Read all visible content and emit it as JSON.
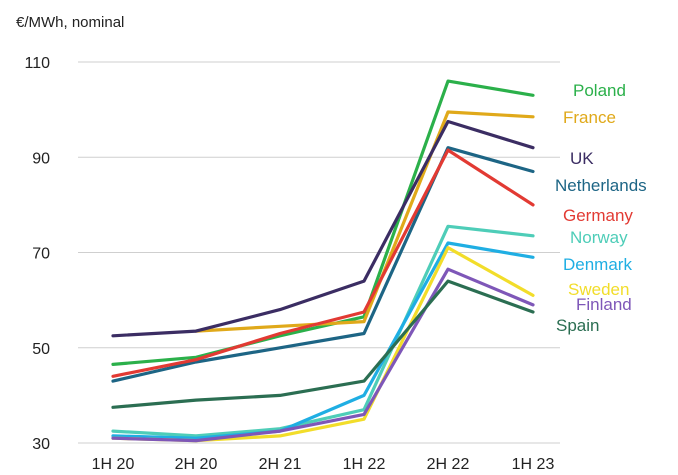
{
  "chart_data": {
    "type": "line",
    "unit_label": "€/MWh, nominal",
    "categories": [
      "1H 20",
      "2H 20",
      "2H 21",
      "1H 22",
      "2H 22",
      "1H 23"
    ],
    "y_ticks": [
      30,
      50,
      70,
      90,
      110
    ],
    "ylim": [
      30,
      110
    ],
    "grid": "horizontal",
    "legend_placement": "right, labels at line ends",
    "series": [
      {
        "name": "Poland",
        "color": "#2bb04a",
        "values": [
          46.5,
          48,
          52.5,
          56.5,
          106,
          103
        ]
      },
      {
        "name": "France",
        "color": "#e0a91a",
        "values": [
          null,
          53.5,
          54.5,
          55.5,
          99.5,
          98.5
        ]
      },
      {
        "name": "UK",
        "color": "#3b2d63",
        "values": [
          52.5,
          53.5,
          58,
          64,
          97.5,
          92
        ]
      },
      {
        "name": "Netherlands",
        "color": "#1d6585",
        "values": [
          43,
          47,
          50,
          53,
          92,
          87
        ]
      },
      {
        "name": "Germany",
        "color": "#e23a33",
        "values": [
          44,
          47.5,
          53,
          57.5,
          91.5,
          80
        ]
      },
      {
        "name": "Norway",
        "color": "#4ecdb8",
        "values": [
          32.5,
          31.5,
          33,
          37,
          75.5,
          73.5
        ]
      },
      {
        "name": "Denmark",
        "color": "#1faee3",
        "values": [
          31.5,
          31,
          32.5,
          40,
          72,
          69
        ]
      },
      {
        "name": "Sweden",
        "color": "#f2dd2a",
        "values": [
          31,
          30.5,
          31.5,
          35,
          71,
          61
        ]
      },
      {
        "name": "Finland",
        "color": "#7e57b8",
        "values": [
          31,
          30.5,
          32.5,
          36,
          66.5,
          59
        ]
      },
      {
        "name": "Spain",
        "color": "#2b6e52",
        "values": [
          37.5,
          39,
          40,
          43,
          64,
          57.5
        ]
      }
    ]
  }
}
